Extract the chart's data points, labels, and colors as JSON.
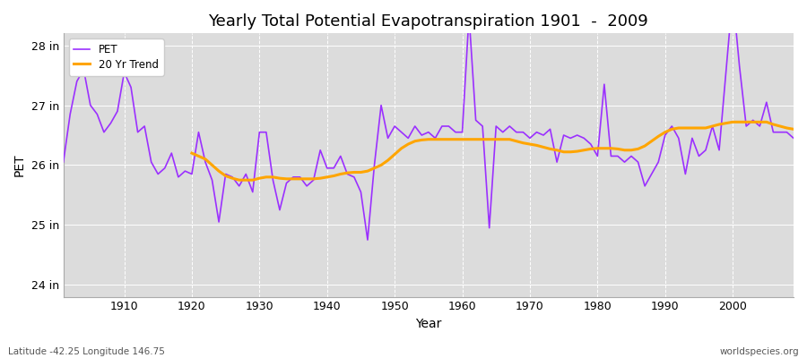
{
  "title": "Yearly Total Potential Evapotranspiration 1901  -  2009",
  "xlabel": "Year",
  "ylabel": "PET",
  "footnote_left": "Latitude -42.25 Longitude 146.75",
  "footnote_right": "worldspecies.org",
  "legend_pet": "PET",
  "legend_trend": "20 Yr Trend",
  "pet_color": "#9B30FF",
  "trend_color": "#FFA500",
  "bg_color": "#DCDCDC",
  "ylim": [
    23.8,
    28.2
  ],
  "yticks": [
    24,
    25,
    26,
    27,
    28
  ],
  "ytick_labels": [
    "24 in",
    "25 in",
    "26 in",
    "27 in",
    "28 in"
  ],
  "years": [
    1901,
    1902,
    1903,
    1904,
    1905,
    1906,
    1907,
    1908,
    1909,
    1910,
    1911,
    1912,
    1913,
    1914,
    1915,
    1916,
    1917,
    1918,
    1919,
    1920,
    1921,
    1922,
    1923,
    1924,
    1925,
    1926,
    1927,
    1928,
    1929,
    1930,
    1931,
    1932,
    1933,
    1934,
    1935,
    1936,
    1937,
    1938,
    1939,
    1940,
    1941,
    1942,
    1943,
    1944,
    1945,
    1946,
    1947,
    1948,
    1949,
    1950,
    1951,
    1952,
    1953,
    1954,
    1955,
    1956,
    1957,
    1958,
    1959,
    1960,
    1961,
    1962,
    1963,
    1964,
    1965,
    1966,
    1967,
    1968,
    1969,
    1970,
    1971,
    1972,
    1973,
    1974,
    1975,
    1976,
    1977,
    1978,
    1979,
    1980,
    1981,
    1982,
    1983,
    1984,
    1985,
    1986,
    1987,
    1988,
    1989,
    1990,
    1991,
    1992,
    1993,
    1994,
    1995,
    1996,
    1997,
    1998,
    1999,
    2000,
    2001,
    2002,
    2003,
    2004,
    2005,
    2006,
    2007,
    2008,
    2009
  ],
  "pet_values": [
    26.05,
    26.85,
    27.4,
    27.6,
    27.0,
    26.85,
    26.55,
    26.7,
    26.9,
    27.55,
    27.3,
    26.55,
    26.65,
    26.05,
    25.85,
    25.95,
    26.2,
    25.8,
    25.9,
    25.85,
    26.55,
    26.05,
    25.75,
    25.05,
    25.85,
    25.8,
    25.65,
    25.85,
    25.55,
    26.55,
    26.55,
    25.75,
    25.25,
    25.7,
    25.8,
    25.8,
    25.65,
    25.75,
    26.25,
    25.95,
    25.95,
    26.15,
    25.85,
    25.8,
    25.55,
    24.75,
    26.0,
    27.0,
    26.45,
    26.65,
    26.55,
    26.45,
    26.65,
    26.5,
    26.55,
    26.45,
    26.65,
    26.65,
    26.55,
    26.55,
    28.5,
    26.75,
    26.65,
    24.95,
    26.65,
    26.55,
    26.65,
    26.55,
    26.55,
    26.45,
    26.55,
    26.5,
    26.6,
    26.05,
    26.5,
    26.45,
    26.5,
    26.45,
    26.35,
    26.15,
    27.35,
    26.15,
    26.15,
    26.05,
    26.15,
    26.05,
    25.65,
    25.85,
    26.05,
    26.5,
    26.65,
    26.45,
    25.85,
    26.45,
    26.15,
    26.25,
    26.65,
    26.25,
    27.55,
    28.85,
    27.65,
    26.65,
    26.75,
    26.65,
    27.05,
    26.55,
    26.55,
    26.55,
    26.45
  ],
  "trend_values": [
    null,
    null,
    null,
    null,
    null,
    null,
    null,
    null,
    null,
    null,
    null,
    null,
    null,
    null,
    null,
    null,
    null,
    null,
    null,
    26.2,
    26.15,
    26.1,
    26.0,
    25.9,
    25.82,
    25.78,
    25.75,
    25.75,
    25.75,
    25.78,
    25.8,
    25.8,
    25.78,
    25.77,
    25.77,
    25.77,
    25.77,
    25.77,
    25.78,
    25.8,
    25.82,
    25.85,
    25.87,
    25.88,
    25.88,
    25.9,
    25.95,
    26.0,
    26.08,
    26.18,
    26.28,
    26.35,
    26.4,
    26.42,
    26.43,
    26.43,
    26.43,
    26.43,
    26.43,
    26.43,
    26.43,
    26.43,
    26.43,
    26.43,
    26.43,
    26.43,
    26.43,
    26.4,
    26.37,
    26.35,
    26.33,
    26.3,
    26.27,
    26.25,
    26.22,
    26.22,
    26.23,
    26.25,
    26.27,
    26.28,
    26.28,
    26.28,
    26.27,
    26.25,
    26.25,
    26.27,
    26.32,
    26.4,
    26.48,
    26.55,
    26.6,
    26.62,
    26.62,
    26.62,
    26.62,
    26.62,
    26.65,
    26.68,
    26.7,
    26.72,
    26.72,
    26.72,
    26.72,
    26.72,
    26.72,
    26.68,
    26.65,
    26.62,
    26.6
  ]
}
